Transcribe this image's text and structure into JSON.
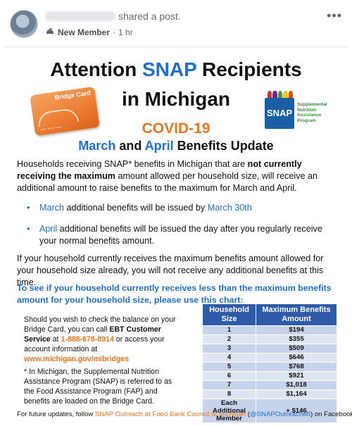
{
  "post": {
    "shared_text": "shared a post.",
    "badge_label": "New Member",
    "separator": "·",
    "time": "1 hr",
    "more_icon": "•••"
  },
  "flyer": {
    "title_prefix": "Attention ",
    "title_snap": "SNAP",
    "title_suffix": " Recipients",
    "title_line2": "in Michigan",
    "covid": "COVID-19",
    "update_march": "March",
    "update_and": " and ",
    "update_april": "April",
    "update_rest": " Benefits Update",
    "bridge_card_label": "Bridge Card",
    "snap_logo_word": "SNAP",
    "snap_logo_desc_1": "Supplemental",
    "snap_logo_desc_2": "Nutrition",
    "snap_logo_desc_3": "Assistance",
    "snap_logo_desc_4": "Program",
    "p1_a": "Households receiving SNAP* benefits in Michigan that are ",
    "p1_bold": "not currently receiving the maximum",
    "p1_b": " amount allowed per household size, will receive an additional amount to raise benefits to the maximum for March and April.",
    "bullet1_word": "March",
    "bullet1_text": " additional benefits will be issued by ",
    "bullet1_date": "March 30th",
    "bullet2_word": "April",
    "bullet2_text": " additional benefits will be issued the day after you regularly receive your normal benefits amount.",
    "p2": "If your household currently receives the maximum benefits amount allowed for your household size already, you will not receive any additional benefits at this time.",
    "cta": "To see if your household currently receives less than the maximum benefits amount for your household size, please use this chart:",
    "note1_a": "Should you wish to check the balance on your Bridge Card, you can call ",
    "note1_bold": "EBT Customer Service",
    "note1_b": " at ",
    "note1_phone": "1-888-678-8914",
    "note1_c": " or access your account information at ",
    "note1_url": "www.michigan.gov/mibridges",
    "note2": "* In Michigan, the Supplemental Nutrition Assistance Program (SNAP) is referred to as the Food Assistance Program (FAP) and benefits are loaded on the Bridge Card.",
    "footer_a": "For future updates, follow ",
    "footer_org": "SNAP Outreach at Food Bank Council of Michigan",
    "footer_b": " (",
    "footer_handle": "@SNAPOutreachMI",
    "footer_c": ") on Facebook!"
  },
  "table": {
    "headers": [
      "Household Size",
      "Maximum Benefits Amount"
    ],
    "rows": [
      [
        "1",
        "$194"
      ],
      [
        "2",
        "$355"
      ],
      [
        "3",
        "$509"
      ],
      [
        "4",
        "$646"
      ],
      [
        "5",
        "$768"
      ],
      [
        "6",
        "$921"
      ],
      [
        "7",
        "$1,018"
      ],
      [
        "8",
        "$1,164"
      ],
      [
        "Each Additional Member",
        "+ $146"
      ]
    ]
  },
  "colors": {
    "snap_blue": "#1f6fd1",
    "covid_orange": "#e87722",
    "table_header": "#2f5aa8"
  }
}
